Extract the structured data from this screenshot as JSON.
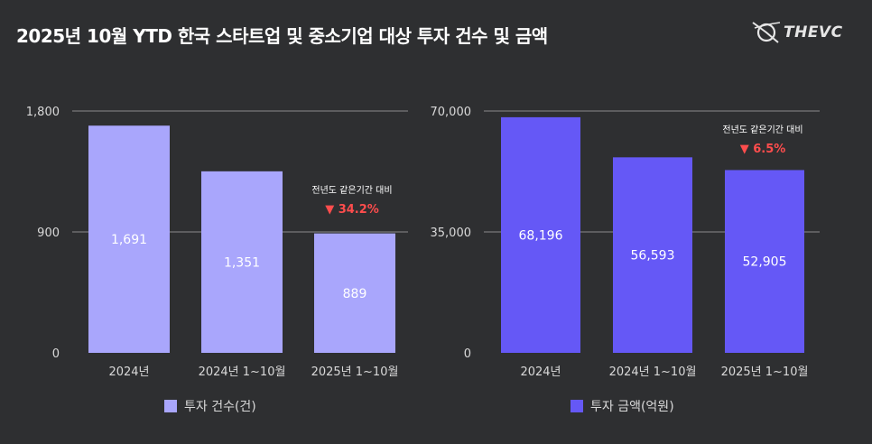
{
  "title": "2025년 10월 YTD 한국 스타트업 및 중소기업 대상 투자 건수 및 금액",
  "brand": "THEVC",
  "colors": {
    "background": "#2e2f31",
    "series1": "#a9a6fc",
    "series2": "#6558f6",
    "down": "#ff4d4d",
    "grid": "#8a8a8a"
  },
  "chart_data": [
    {
      "type": "bar",
      "title": "",
      "categories": [
        "2024년",
        "2024년 1~10월",
        "2025년 1~10월"
      ],
      "values": [
        1691,
        1351,
        889
      ],
      "value_labels": [
        "1,691",
        "1,351",
        "889"
      ],
      "yticks": [
        "0",
        "900",
        "1,800"
      ],
      "ylim": [
        0,
        1800
      ],
      "legend": "투자 건수(건)",
      "color": "#a9a6fc",
      "annotation": {
        "label": "전년도 같은기간 대비",
        "value": "▼ 34.2%"
      }
    },
    {
      "type": "bar",
      "title": "",
      "categories": [
        "2024년",
        "2024년 1~10월",
        "2025년 1~10월"
      ],
      "values": [
        68196,
        56593,
        52905
      ],
      "value_labels": [
        "68,196",
        "56,593",
        "52,905"
      ],
      "yticks": [
        "0",
        "35,000",
        "70,000"
      ],
      "ylim": [
        0,
        70000
      ],
      "legend": "투자 금액(억원)",
      "color": "#6558f6",
      "annotation": {
        "label": "전년도 같은기간 대비",
        "value": "▼ 6.5%"
      }
    }
  ]
}
